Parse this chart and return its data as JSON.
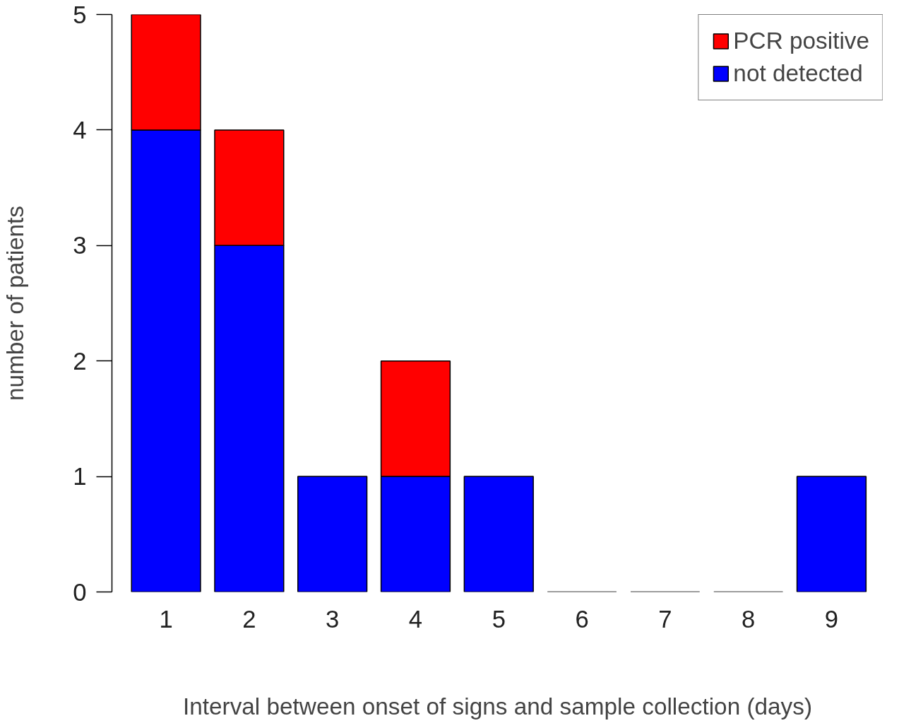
{
  "chart_data": {
    "type": "bar",
    "stacked": true,
    "xlabel": "Interval between onset of signs and sample collection (days)",
    "ylabel": "number of patients",
    "categories": [
      "1",
      "2",
      "3",
      "4",
      "5",
      "6",
      "7",
      "8",
      "9"
    ],
    "series": [
      {
        "name": "not detected",
        "color": "#0000ff",
        "values": [
          4,
          3,
          1,
          1,
          1,
          0,
          0,
          0,
          1
        ]
      },
      {
        "name": "PCR positive",
        "color": "#ff0000",
        "values": [
          1,
          1,
          0,
          1,
          0,
          0,
          0,
          0,
          0
        ]
      }
    ],
    "ylim": [
      0,
      5
    ],
    "yticks": [
      0,
      1,
      2,
      3,
      4,
      5
    ],
    "grid": false,
    "legend": "top right"
  }
}
